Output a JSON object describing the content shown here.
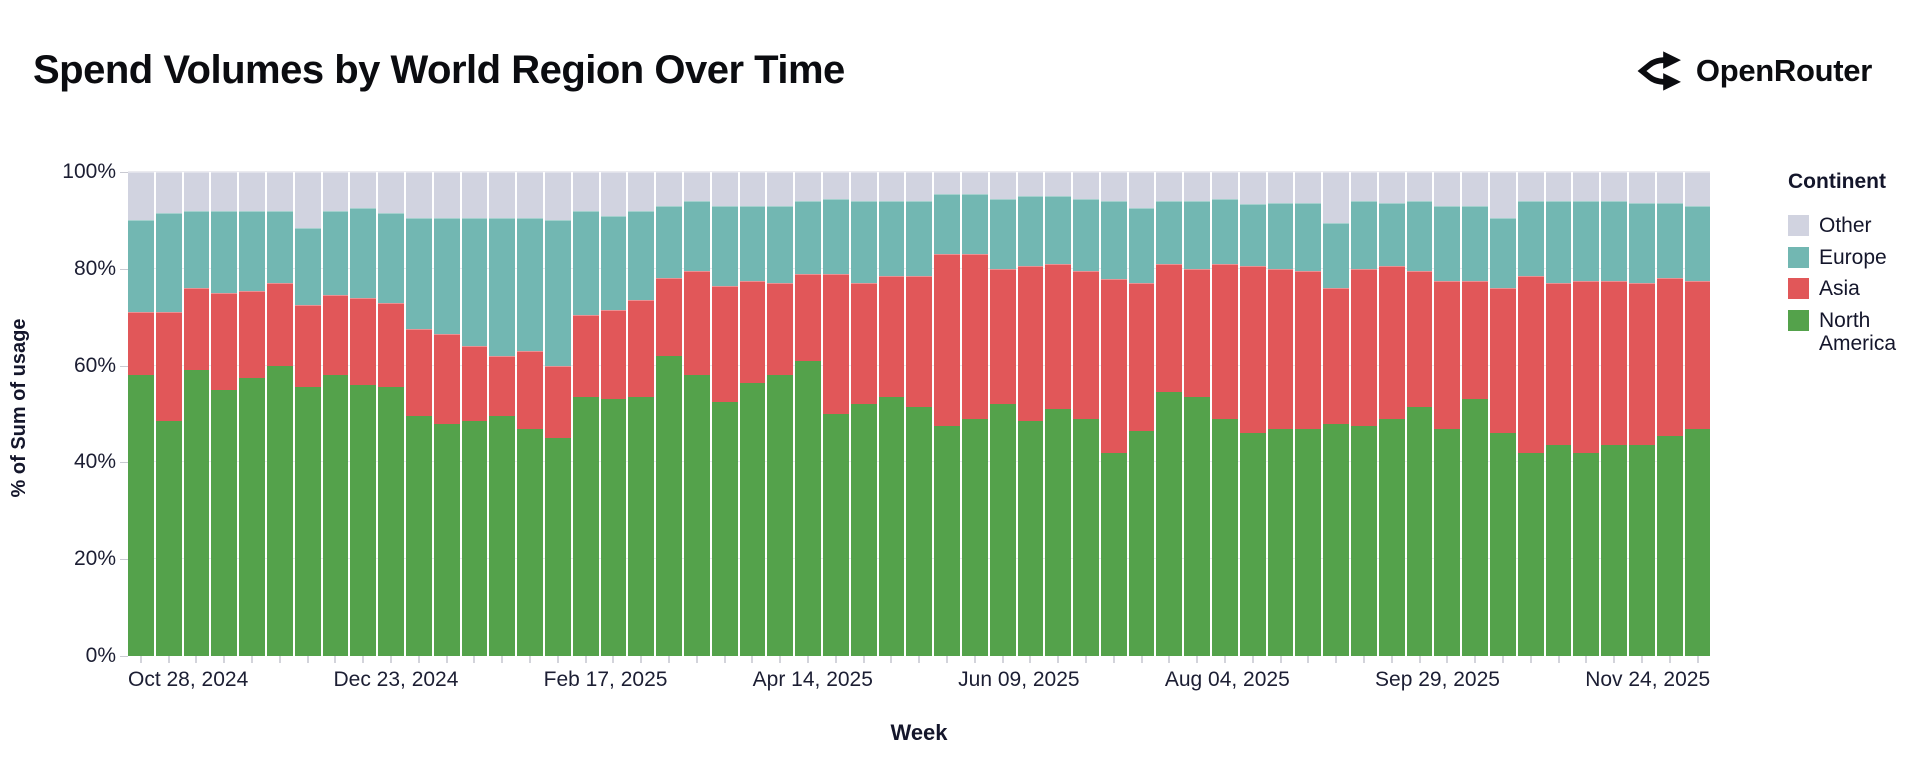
{
  "header": {
    "title": "Spend Volumes by World Region Over Time",
    "brand": "OpenRouter"
  },
  "axes": {
    "y_title": "% of Sum of usage",
    "x_title": "Week"
  },
  "legend": {
    "title": "Continent",
    "items": [
      {
        "label": "Other",
        "color": "#d1d3e0"
      },
      {
        "label": "Europe",
        "color": "#72b7b2"
      },
      {
        "label": "Asia",
        "color": "#e15759"
      },
      {
        "label": "North America",
        "color": "#54a24b"
      }
    ]
  },
  "chart_data": {
    "type": "bar",
    "stacked": true,
    "normalized": true,
    "title": "Spend Volumes by World Region Over Time",
    "xlabel": "Week",
    "ylabel": "% of Sum of usage",
    "ylim": [
      0,
      100
    ],
    "y_ticks": [
      0,
      20,
      40,
      60,
      80,
      100
    ],
    "y_tick_labels": [
      "0%",
      "20%",
      "40%",
      "60%",
      "80%",
      "100%"
    ],
    "series_order_bottom_to_top": [
      "North America",
      "Asia",
      "Europe",
      "Other"
    ],
    "colors": {
      "North America": "#54a24b",
      "Asia": "#e15759",
      "Europe": "#72b7b2",
      "Other": "#d1d3e0"
    },
    "x_tick_labels": [
      {
        "index": 0,
        "label": "Oct 28, 2024"
      },
      {
        "index": 8,
        "label": "Dec 23, 2024"
      },
      {
        "index": 16,
        "label": "Feb 17, 2025"
      },
      {
        "index": 24,
        "label": "Apr 14, 2025"
      },
      {
        "index": 32,
        "label": "Jun 09, 2025"
      },
      {
        "index": 40,
        "label": "Aug 04, 2025"
      },
      {
        "index": 48,
        "label": "Sep 29, 2025"
      },
      {
        "index": 56,
        "label": "Nov 24, 2025"
      }
    ],
    "weeks": [
      {
        "week": "Oct 28, 2024",
        "North America": 58,
        "Asia": 13,
        "Europe": 19,
        "Other": 10
      },
      {
        "week": "Nov 04, 2024",
        "North America": 48.5,
        "Asia": 22.5,
        "Europe": 20.5,
        "Other": 8.5
      },
      {
        "week": "Nov 11, 2024",
        "North America": 59,
        "Asia": 17,
        "Europe": 16,
        "Other": 8
      },
      {
        "week": "Nov 18, 2024",
        "North America": 55,
        "Asia": 20,
        "Europe": 17,
        "Other": 8
      },
      {
        "week": "Nov 25, 2024",
        "North America": 57.5,
        "Asia": 18,
        "Europe": 16.5,
        "Other": 8
      },
      {
        "week": "Dec 02, 2024",
        "North America": 60,
        "Asia": 17,
        "Europe": 15,
        "Other": 8
      },
      {
        "week": "Dec 09, 2024",
        "North America": 55.5,
        "Asia": 17,
        "Europe": 16,
        "Other": 11.5
      },
      {
        "week": "Dec 16, 2024",
        "North America": 58,
        "Asia": 16.5,
        "Europe": 17.5,
        "Other": 8
      },
      {
        "week": "Dec 23, 2024",
        "North America": 56,
        "Asia": 18,
        "Europe": 18.5,
        "Other": 7.5
      },
      {
        "week": "Dec 30, 2024",
        "North America": 55.5,
        "Asia": 17.5,
        "Europe": 18.5,
        "Other": 8.5
      },
      {
        "week": "Jan 06, 2025",
        "North America": 49.5,
        "Asia": 18,
        "Europe": 23,
        "Other": 9.5
      },
      {
        "week": "Jan 13, 2025",
        "North America": 48,
        "Asia": 18.5,
        "Europe": 24,
        "Other": 9.5
      },
      {
        "week": "Jan 20, 2025",
        "North America": 48.5,
        "Asia": 15.5,
        "Europe": 26.5,
        "Other": 9.5
      },
      {
        "week": "Jan 27, 2025",
        "North America": 49.5,
        "Asia": 12.5,
        "Europe": 28.5,
        "Other": 9.5
      },
      {
        "week": "Feb 03, 2025",
        "North America": 47,
        "Asia": 16,
        "Europe": 27.5,
        "Other": 9.5
      },
      {
        "week": "Feb 10, 2025",
        "North America": 45,
        "Asia": 15,
        "Europe": 30,
        "Other": 10
      },
      {
        "week": "Feb 17, 2025",
        "North America": 53.5,
        "Asia": 17,
        "Europe": 21.5,
        "Other": 8
      },
      {
        "week": "Feb 24, 2025",
        "North America": 53,
        "Asia": 18.5,
        "Europe": 19.5,
        "Other": 9
      },
      {
        "week": "Mar 03, 2025",
        "North America": 53.5,
        "Asia": 20,
        "Europe": 18.5,
        "Other": 8
      },
      {
        "week": "Mar 10, 2025",
        "North America": 62,
        "Asia": 16,
        "Europe": 15,
        "Other": 7
      },
      {
        "week": "Mar 17, 2025",
        "North America": 58,
        "Asia": 21.5,
        "Europe": 14.5,
        "Other": 6
      },
      {
        "week": "Mar 24, 2025",
        "North America": 52.5,
        "Asia": 24,
        "Europe": 16.5,
        "Other": 7
      },
      {
        "week": "Mar 31, 2025",
        "North America": 56.5,
        "Asia": 21,
        "Europe": 15.5,
        "Other": 7
      },
      {
        "week": "Apr 07, 2025",
        "North America": 58,
        "Asia": 19,
        "Europe": 16,
        "Other": 7
      },
      {
        "week": "Apr 14, 2025",
        "North America": 61,
        "Asia": 18,
        "Europe": 15,
        "Other": 6
      },
      {
        "week": "Apr 21, 2025",
        "North America": 50,
        "Asia": 29,
        "Europe": 15.5,
        "Other": 5.5
      },
      {
        "week": "Apr 28, 2025",
        "North America": 52,
        "Asia": 25,
        "Europe": 17,
        "Other": 6
      },
      {
        "week": "May 05, 2025",
        "North America": 53.5,
        "Asia": 25,
        "Europe": 15.5,
        "Other": 6
      },
      {
        "week": "May 12, 2025",
        "North America": 51.5,
        "Asia": 27,
        "Europe": 15.5,
        "Other": 6
      },
      {
        "week": "May 19, 2025",
        "North America": 47.5,
        "Asia": 35.5,
        "Europe": 12.5,
        "Other": 4.5
      },
      {
        "week": "May 26, 2025",
        "North America": 49,
        "Asia": 34,
        "Europe": 12.5,
        "Other": 4.5
      },
      {
        "week": "Jun 02, 2025",
        "North America": 52,
        "Asia": 28,
        "Europe": 14.5,
        "Other": 5.5
      },
      {
        "week": "Jun 09, 2025",
        "North America": 48.5,
        "Asia": 32,
        "Europe": 14.5,
        "Other": 5
      },
      {
        "week": "Jun 16, 2025",
        "North America": 51,
        "Asia": 30,
        "Europe": 14,
        "Other": 5
      },
      {
        "week": "Jun 23, 2025",
        "North America": 49,
        "Asia": 30.5,
        "Europe": 15,
        "Other": 5.5
      },
      {
        "week": "Jun 30, 2025",
        "North America": 42,
        "Asia": 36,
        "Europe": 16,
        "Other": 6
      },
      {
        "week": "Jul 07, 2025",
        "North America": 46.5,
        "Asia": 30.5,
        "Europe": 15.5,
        "Other": 7.5
      },
      {
        "week": "Jul 14, 2025",
        "North America": 54.5,
        "Asia": 26.5,
        "Europe": 13,
        "Other": 6
      },
      {
        "week": "Jul 21, 2025",
        "North America": 53.5,
        "Asia": 26.5,
        "Europe": 14,
        "Other": 6
      },
      {
        "week": "Jul 28, 2025",
        "North America": 49,
        "Asia": 32,
        "Europe": 13.5,
        "Other": 5.5
      },
      {
        "week": "Aug 04, 2025",
        "North America": 46,
        "Asia": 34.5,
        "Europe": 13,
        "Other": 6.5
      },
      {
        "week": "Aug 11, 2025",
        "North America": 47,
        "Asia": 33,
        "Europe": 13.5,
        "Other": 6.5
      },
      {
        "week": "Aug 18, 2025",
        "North America": 47,
        "Asia": 32.5,
        "Europe": 14,
        "Other": 6.5
      },
      {
        "week": "Aug 25, 2025",
        "North America": 48,
        "Asia": 28,
        "Europe": 13.5,
        "Other": 10.5
      },
      {
        "week": "Sep 01, 2025",
        "North America": 47.5,
        "Asia": 32.5,
        "Europe": 14,
        "Other": 6
      },
      {
        "week": "Sep 08, 2025",
        "North America": 49,
        "Asia": 31.5,
        "Europe": 13,
        "Other": 6.5
      },
      {
        "week": "Sep 15, 2025",
        "North America": 51.5,
        "Asia": 28,
        "Europe": 14.5,
        "Other": 6
      },
      {
        "week": "Sep 22, 2025",
        "North America": 47,
        "Asia": 30.5,
        "Europe": 15.5,
        "Other": 7
      },
      {
        "week": "Sep 29, 2025",
        "North America": 53,
        "Asia": 24.5,
        "Europe": 15.5,
        "Other": 7
      },
      {
        "week": "Oct 06, 2025",
        "North America": 46,
        "Asia": 30,
        "Europe": 14.5,
        "Other": 9.5
      },
      {
        "week": "Oct 13, 2025",
        "North America": 42,
        "Asia": 36.5,
        "Europe": 15.5,
        "Other": 6
      },
      {
        "week": "Oct 20, 2025",
        "North America": 43.5,
        "Asia": 33.5,
        "Europe": 17,
        "Other": 6
      },
      {
        "week": "Oct 27, 2025",
        "North America": 42,
        "Asia": 35.5,
        "Europe": 16.5,
        "Other": 6
      },
      {
        "week": "Nov 03, 2025",
        "North America": 43.5,
        "Asia": 34,
        "Europe": 16.5,
        "Other": 6
      },
      {
        "week": "Nov 10, 2025",
        "North America": 43.5,
        "Asia": 33.5,
        "Europe": 16.5,
        "Other": 6.5
      },
      {
        "week": "Nov 17, 2025",
        "North America": 45.5,
        "Asia": 32.5,
        "Europe": 15.5,
        "Other": 6.5
      },
      {
        "week": "Nov 24, 2025",
        "North America": 47,
        "Asia": 30.5,
        "Europe": 15.5,
        "Other": 7
      }
    ]
  }
}
